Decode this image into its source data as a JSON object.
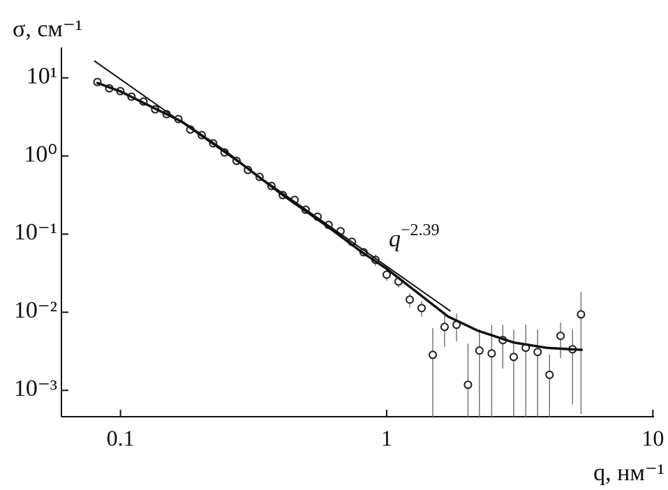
{
  "chart_data": {
    "type": "scatter",
    "x_label": "q, нм⁻¹",
    "y_label": "σ, см⁻¹",
    "log_x": true,
    "log_y": true,
    "xlim": [
      0.06,
      10.1
    ],
    "ylim": [
      0.00046,
      24.5
    ],
    "xticks": [
      0.1,
      1,
      10
    ],
    "yticks": [
      {
        "value": 0.001,
        "label": "10⁻³"
      },
      {
        "value": 0.01,
        "label": "10⁻²"
      },
      {
        "value": 0.1,
        "label": "10⁻¹"
      },
      {
        "value": 1,
        "label": "10⁰"
      },
      {
        "value": 10,
        "label": "10¹"
      }
    ],
    "annotation": {
      "text": "q",
      "superscript": "−2.39"
    },
    "series": [
      {
        "style": "markers",
        "color": "#222222",
        "x": [
          0.0819,
          0.0908,
          0.0999,
          0.11,
          0.122,
          0.135,
          0.149,
          0.165,
          0.183,
          0.202,
          0.223,
          0.246,
          0.273,
          0.301,
          0.333,
          0.369,
          0.407,
          0.451,
          0.496,
          0.55,
          0.605,
          0.671,
          0.74,
          0.819,
          0.908,
          1.0,
          1.108,
          1.221,
          1.353,
          1.49,
          1.65,
          1.83,
          2.02,
          2.23,
          2.48,
          2.73,
          3.0,
          3.33,
          3.69,
          4.09,
          4.5,
          4.99,
          5.37
        ],
        "y": [
          8.84,
          7.35,
          6.77,
          5.74,
          4.97,
          3.96,
          3.43,
          2.97,
          2.18,
          1.85,
          1.45,
          1.11,
          0.866,
          0.663,
          0.54,
          0.413,
          0.316,
          0.274,
          0.205,
          0.167,
          0.131,
          0.109,
          0.0798,
          0.0586,
          0.0468,
          0.0303,
          0.0247,
          0.0145,
          0.0113,
          0.00285,
          0.00649,
          0.00691,
          0.00118,
          0.00323,
          0.00297,
          0.0044,
          0.00268,
          0.00351,
          0.0031,
          0.00158,
          0.00499,
          0.00336,
          0.0094
        ],
        "errors": [
          0.8,
          0.5,
          0.3,
          0.2,
          0.15,
          0.1,
          0.08,
          0.06,
          0.05,
          0.04,
          0.03,
          0.025,
          0.02,
          0.015,
          0.012,
          0.01,
          0.008,
          0.007,
          0.006,
          0.005,
          0.005,
          0.005,
          0.005,
          0.005,
          0.008,
          0.005,
          0.004,
          0.003,
          0.0025,
          0.0034,
          0.0029,
          0.0027,
          0.0028,
          0.0028,
          0.0039,
          0.0025,
          0.0033,
          0.0034,
          0.0029,
          0.0013,
          0.0024,
          0.0027,
          0.0089
        ]
      },
      {
        "style": "curve",
        "color": "#111111",
        "x": [
          0.082,
          0.1,
          0.13,
          0.17,
          0.25,
          0.4,
          0.6,
          0.8,
          1.0,
          1.3,
          1.7,
          2.2,
          3.0,
          4.0,
          5.4
        ],
        "y": [
          8.6,
          6.7,
          4.3,
          2.75,
          1.12,
          0.33,
          0.125,
          0.06,
          0.036,
          0.018,
          0.0088,
          0.0058,
          0.0041,
          0.0035,
          0.0033
        ]
      },
      {
        "style": "guide",
        "color": "#111111",
        "x": [
          0.08,
          1.73
        ],
        "y": [
          16.4,
          0.0104
        ]
      }
    ]
  }
}
